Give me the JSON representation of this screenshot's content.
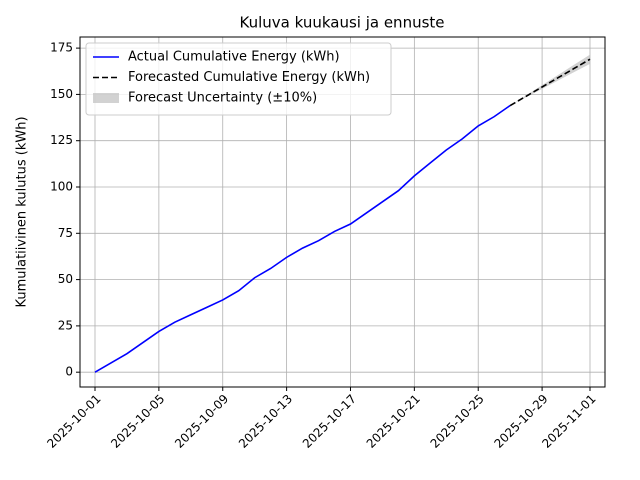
{
  "chart_data": {
    "type": "line",
    "title": "Kuluva kuukausi ja ennuste",
    "ylabel": "Kumulatiivinen kulutus (kWh)",
    "xlim": [
      "2025-10-01",
      "2025-11-01"
    ],
    "xticks": [
      "2025-10-01",
      "2025-10-05",
      "2025-10-09",
      "2025-10-13",
      "2025-10-17",
      "2025-10-21",
      "2025-10-25",
      "2025-10-29",
      "2025-11-01"
    ],
    "ylim": [
      -8,
      181
    ],
    "yticks": [
      0,
      25,
      50,
      75,
      100,
      125,
      150,
      175
    ],
    "grid": true,
    "legend": "upper left",
    "series": [
      {
        "name": "Actual Cumulative Energy (kWh)",
        "color": "#0000ff",
        "dash": "solid",
        "x": [
          "2025-10-01",
          "2025-10-02",
          "2025-10-03",
          "2025-10-04",
          "2025-10-05",
          "2025-10-06",
          "2025-10-07",
          "2025-10-08",
          "2025-10-09",
          "2025-10-10",
          "2025-10-11",
          "2025-10-12",
          "2025-10-13",
          "2025-10-14",
          "2025-10-15",
          "2025-10-16",
          "2025-10-17",
          "2025-10-18",
          "2025-10-19",
          "2025-10-20",
          "2025-10-21",
          "2025-10-22",
          "2025-10-23",
          "2025-10-24",
          "2025-10-25",
          "2025-10-26",
          "2025-10-27"
        ],
        "values": [
          0,
          5,
          10,
          16,
          22,
          27,
          31,
          35,
          39,
          44,
          51,
          56,
          62,
          67,
          71,
          76,
          80,
          86,
          92,
          98,
          106,
          113,
          120,
          126,
          133,
          138,
          144
        ]
      },
      {
        "name": "Forecasted Cumulative Energy (kWh)",
        "color": "#000000",
        "dash": "dashed",
        "x": [
          "2025-10-27",
          "2025-10-28",
          "2025-10-29",
          "2025-10-30",
          "2025-10-31",
          "2025-11-01"
        ],
        "values": [
          144,
          149,
          154,
          159,
          164,
          169
        ]
      }
    ],
    "band": {
      "name": "Forecast Uncertainty (±10%)",
      "color": "#bfbfbf",
      "x": [
        "2025-10-27",
        "2025-10-28",
        "2025-10-29",
        "2025-10-30",
        "2025-10-31",
        "2025-11-01"
      ],
      "lower": [
        144,
        148.5,
        153,
        157.5,
        162,
        166.5
      ],
      "upper": [
        144,
        149.5,
        155,
        160.5,
        166,
        171.5
      ]
    }
  }
}
